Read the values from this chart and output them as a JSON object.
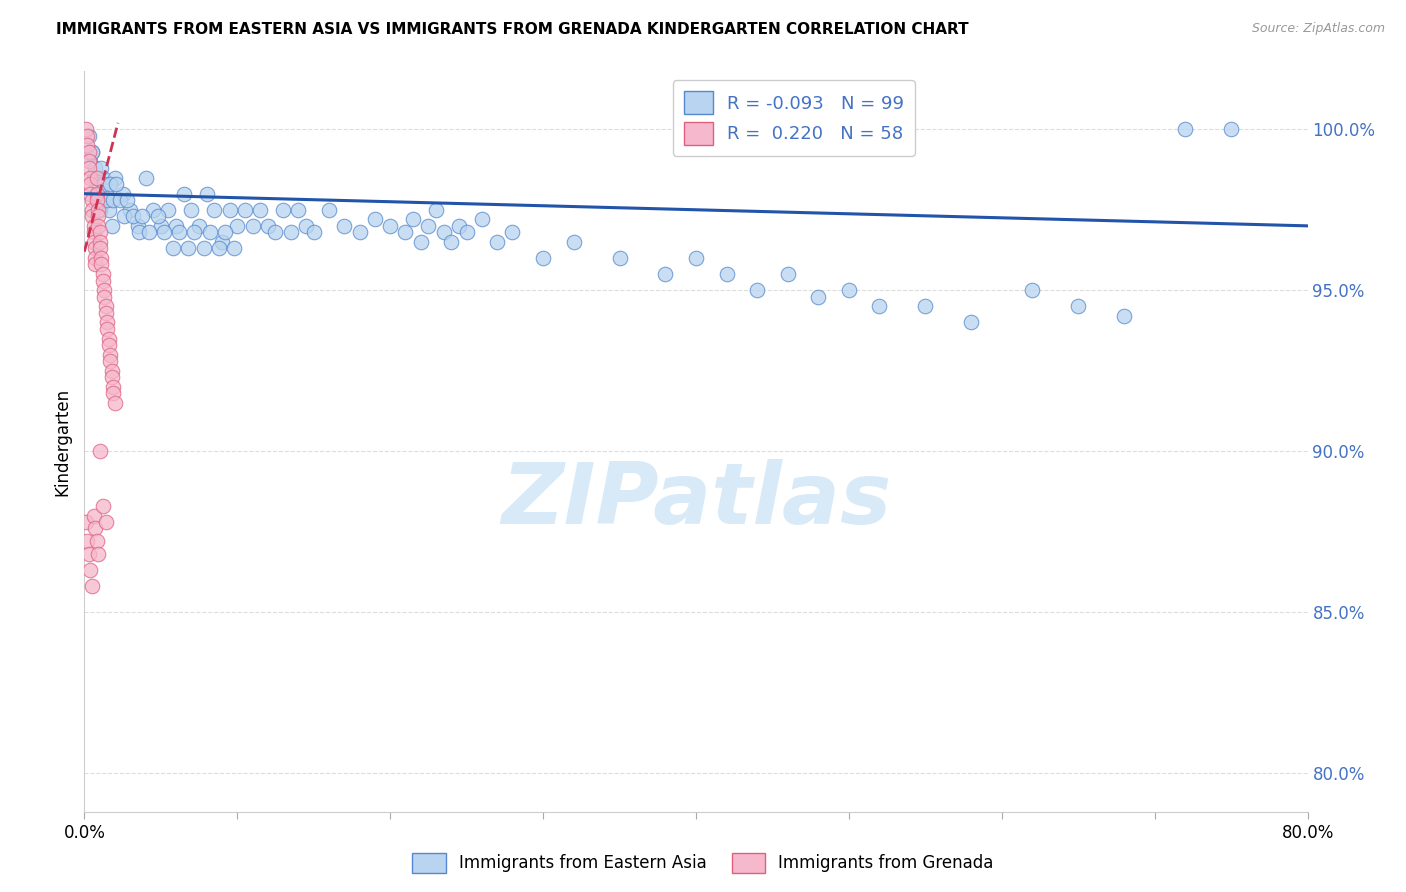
{
  "title": "IMMIGRANTS FROM EASTERN ASIA VS IMMIGRANTS FROM GRENADA KINDERGARTEN CORRELATION CHART",
  "source": "Source: ZipAtlas.com",
  "ylabel": "Kindergarten",
  "xlim": [
    0.0,
    0.8
  ],
  "ylim": [
    0.788,
    1.018
  ],
  "xtick_positions": [
    0.0,
    0.1,
    0.2,
    0.3,
    0.4,
    0.5,
    0.6,
    0.7,
    0.8
  ],
  "xticklabels": [
    "0.0%",
    "",
    "",
    "",
    "",
    "",
    "",
    "",
    "80.0%"
  ],
  "ytick_positions": [
    0.8,
    0.85,
    0.9,
    0.95,
    1.0
  ],
  "yticklabels": [
    "80.0%",
    "85.0%",
    "90.0%",
    "95.0%",
    "100.0%"
  ],
  "blue_fill": "#b8d4f0",
  "blue_edge": "#5588cc",
  "pink_fill": "#f5b8cc",
  "pink_edge": "#e06080",
  "trend_blue_color": "#2255aa",
  "trend_pink_color": "#cc3355",
  "watermark_text": "ZIPatlas",
  "watermark_color": "#d8eaf8",
  "legend_text1": "R = -0.093   N = 99",
  "legend_text2": "R =  0.220   N = 58",
  "right_axis_color": "#4472c4",
  "source_color": "#999999",
  "grid_color": "#dddddd",
  "spine_color": "#cccccc",
  "blue_x": [
    0.004,
    0.006,
    0.008,
    0.01,
    0.012,
    0.014,
    0.016,
    0.018,
    0.02,
    0.025,
    0.03,
    0.035,
    0.04,
    0.045,
    0.05,
    0.055,
    0.06,
    0.065,
    0.07,
    0.075,
    0.08,
    0.085,
    0.09,
    0.095,
    0.1,
    0.105,
    0.11,
    0.115,
    0.12,
    0.125,
    0.13,
    0.135,
    0.14,
    0.145,
    0.15,
    0.16,
    0.17,
    0.18,
    0.19,
    0.2,
    0.21,
    0.215,
    0.22,
    0.225,
    0.23,
    0.235,
    0.24,
    0.245,
    0.25,
    0.26,
    0.27,
    0.28,
    0.3,
    0.32,
    0.35,
    0.38,
    0.4,
    0.42,
    0.44,
    0.46,
    0.48,
    0.5,
    0.52,
    0.55,
    0.58,
    0.62,
    0.65,
    0.68,
    0.72,
    0.75,
    0.003,
    0.005,
    0.007,
    0.009,
    0.011,
    0.013,
    0.015,
    0.017,
    0.019,
    0.021,
    0.023,
    0.026,
    0.028,
    0.032,
    0.036,
    0.038,
    0.042,
    0.048,
    0.052,
    0.058,
    0.062,
    0.068,
    0.072,
    0.078,
    0.082,
    0.088,
    0.092,
    0.098,
    0.005
  ],
  "blue_y": [
    0.99,
    0.985,
    0.98,
    0.975,
    0.985,
    0.98,
    0.975,
    0.97,
    0.985,
    0.98,
    0.975,
    0.97,
    0.985,
    0.975,
    0.97,
    0.975,
    0.97,
    0.98,
    0.975,
    0.97,
    0.98,
    0.975,
    0.965,
    0.975,
    0.97,
    0.975,
    0.97,
    0.975,
    0.97,
    0.968,
    0.975,
    0.968,
    0.975,
    0.97,
    0.968,
    0.975,
    0.97,
    0.968,
    0.972,
    0.97,
    0.968,
    0.972,
    0.965,
    0.97,
    0.975,
    0.968,
    0.965,
    0.97,
    0.968,
    0.972,
    0.965,
    0.968,
    0.96,
    0.965,
    0.96,
    0.955,
    0.96,
    0.955,
    0.95,
    0.955,
    0.948,
    0.95,
    0.945,
    0.945,
    0.94,
    0.95,
    0.945,
    0.942,
    1.0,
    1.0,
    0.998,
    0.993,
    0.988,
    0.983,
    0.988,
    0.983,
    0.978,
    0.983,
    0.978,
    0.983,
    0.978,
    0.973,
    0.978,
    0.973,
    0.968,
    0.973,
    0.968,
    0.973,
    0.968,
    0.963,
    0.968,
    0.963,
    0.968,
    0.963,
    0.968,
    0.963,
    0.968,
    0.963,
    0.993
  ],
  "pink_x": [
    0.001,
    0.002,
    0.002,
    0.003,
    0.003,
    0.003,
    0.004,
    0.004,
    0.004,
    0.005,
    0.005,
    0.005,
    0.006,
    0.006,
    0.006,
    0.007,
    0.007,
    0.007,
    0.008,
    0.008,
    0.008,
    0.009,
    0.009,
    0.009,
    0.01,
    0.01,
    0.01,
    0.011,
    0.011,
    0.012,
    0.012,
    0.013,
    0.013,
    0.014,
    0.014,
    0.015,
    0.015,
    0.016,
    0.016,
    0.017,
    0.017,
    0.018,
    0.018,
    0.019,
    0.019,
    0.02,
    0.001,
    0.002,
    0.003,
    0.004,
    0.005,
    0.006,
    0.007,
    0.008,
    0.009,
    0.01,
    0.012,
    0.014
  ],
  "pink_y": [
    1.0,
    0.998,
    0.995,
    0.993,
    0.99,
    0.988,
    0.985,
    0.983,
    0.98,
    0.978,
    0.975,
    0.973,
    0.97,
    0.968,
    0.965,
    0.963,
    0.96,
    0.958,
    0.985,
    0.98,
    0.978,
    0.975,
    0.973,
    0.97,
    0.968,
    0.965,
    0.963,
    0.96,
    0.958,
    0.955,
    0.953,
    0.95,
    0.948,
    0.945,
    0.943,
    0.94,
    0.938,
    0.935,
    0.933,
    0.93,
    0.928,
    0.925,
    0.923,
    0.92,
    0.918,
    0.915,
    0.878,
    0.872,
    0.868,
    0.863,
    0.858,
    0.88,
    0.876,
    0.872,
    0.868,
    0.9,
    0.883,
    0.878
  ],
  "trend_blue_x0": 0.0,
  "trend_blue_x1": 0.8,
  "trend_blue_y0": 0.98,
  "trend_blue_y1": 0.97,
  "trend_pink_x0": 0.0,
  "trend_pink_x1": 0.022,
  "trend_pink_y0": 0.962,
  "trend_pink_y1": 1.002
}
